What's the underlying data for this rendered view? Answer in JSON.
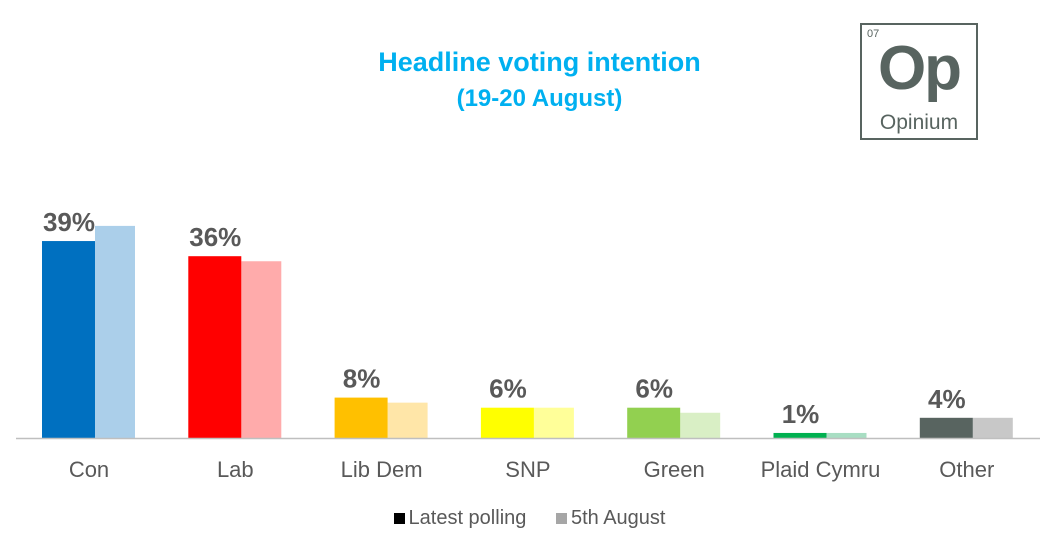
{
  "chart_data": {
    "type": "bar",
    "title": "Headline voting intention",
    "subtitle": "(19-20 August)",
    "categories": [
      "Con",
      "Lab",
      "Lib Dem",
      "SNP",
      "Green",
      "Plaid Cymru",
      "Other"
    ],
    "series": [
      {
        "name": "Latest polling",
        "values": [
          39,
          36,
          8,
          6,
          6,
          1,
          4
        ],
        "colors": [
          "#0070C0",
          "#FF0000",
          "#FFC000",
          "#FFFF00",
          "#92D050",
          "#00B050",
          "#586460"
        ],
        "legend_color": "#000000"
      },
      {
        "name": "5th August",
        "values": [
          42,
          35,
          7,
          6,
          5,
          1,
          4
        ],
        "colors": [
          "#ABCFEA",
          "#FFABAB",
          "#FFE6A8",
          "#FFFF99",
          "#D9EFC5",
          "#A8DEC3",
          "#C8C8C8"
        ],
        "legend_color": "#A6A6A6"
      }
    ],
    "data_labels": [
      "39%",
      "36%",
      "8%",
      "6%",
      "6%",
      "1%",
      "4%"
    ],
    "ylim": [
      0,
      45
    ],
    "grid": false,
    "legend": "bottom"
  },
  "logo": {
    "number": "07",
    "symbol": "Op",
    "name": "Opinium"
  }
}
